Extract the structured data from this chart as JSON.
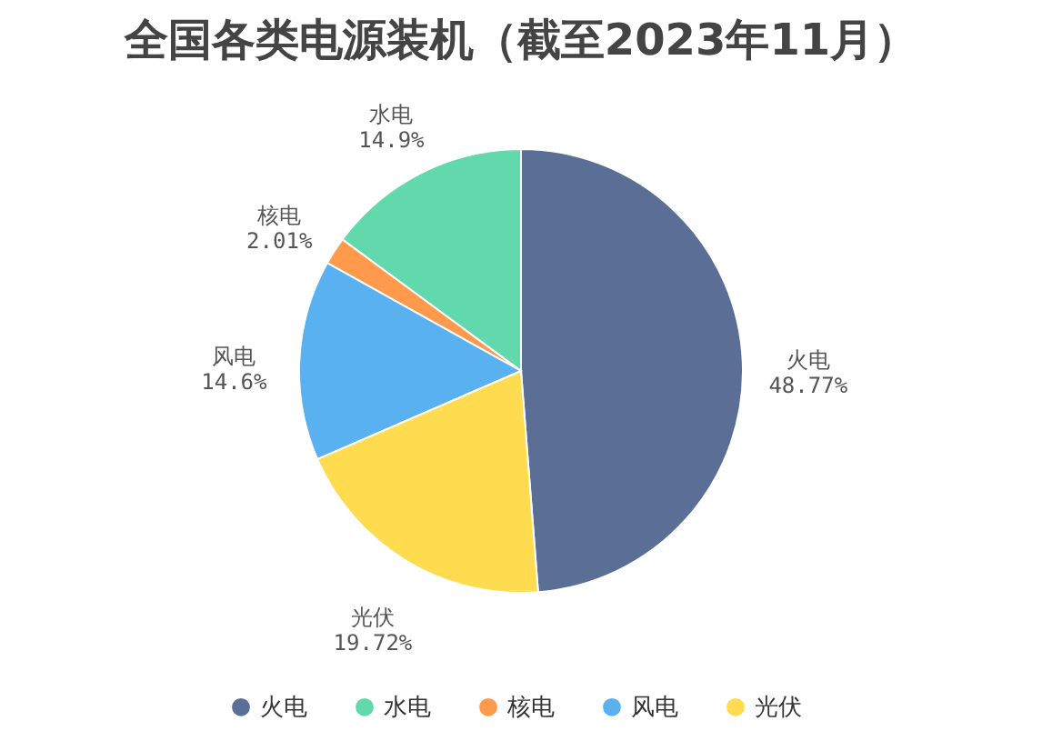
{
  "chart_data": {
    "type": "pie",
    "title": "全国各类电源装机（截至2023年11月）",
    "categories": [
      "火电",
      "水电",
      "核电",
      "风电",
      "光伏"
    ],
    "values": [
      48.77,
      14.9,
      2.01,
      14.6,
      19.72
    ],
    "colors": [
      "#5b6e96",
      "#62d9ad",
      "#ff9a4d",
      "#5ab1ef",
      "#ffdb4f"
    ],
    "value_labels": [
      "48.77%",
      "14.9%",
      "2.01%",
      "14.6%",
      "19.72%"
    ],
    "legend": "bottom"
  }
}
